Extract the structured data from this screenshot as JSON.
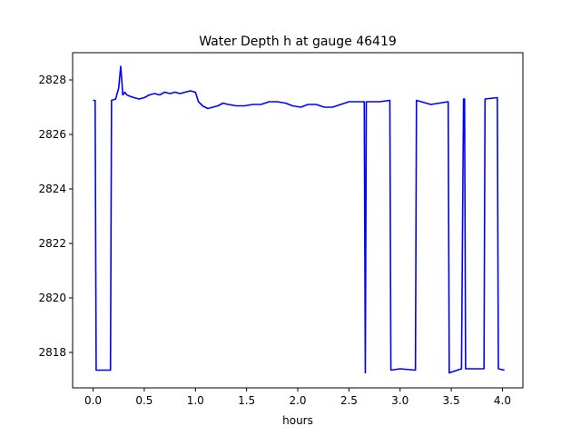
{
  "chart_data": {
    "type": "line",
    "title": "Water Depth h at gauge 46419",
    "xlabel": "hours",
    "ylabel": "",
    "xlim": [
      -0.2,
      4.2
    ],
    "ylim": [
      2816.7,
      2829.0
    ],
    "xticks": [
      0.0,
      0.5,
      1.0,
      1.5,
      2.0,
      2.5,
      3.0,
      3.5,
      4.0
    ],
    "xtick_labels": [
      "0.0",
      "0.5",
      "1.0",
      "1.5",
      "2.0",
      "2.5",
      "3.0",
      "3.5",
      "4.0"
    ],
    "yticks": [
      2818,
      2820,
      2822,
      2824,
      2826,
      2828
    ],
    "ytick_labels": [
      "2818",
      "2820",
      "2822",
      "2824",
      "2826",
      "2828"
    ],
    "grid": false,
    "series": [
      {
        "name": "",
        "color": "#0000ff",
        "x": [
          0.0,
          0.02,
          0.03,
          0.17,
          0.18,
          0.22,
          0.25,
          0.27,
          0.28,
          0.29,
          0.31,
          0.33,
          0.36,
          0.4,
          0.45,
          0.5,
          0.55,
          0.6,
          0.65,
          0.7,
          0.75,
          0.8,
          0.85,
          0.9,
          0.95,
          1.0,
          1.03,
          1.07,
          1.12,
          1.17,
          1.22,
          1.27,
          1.32,
          1.4,
          1.48,
          1.56,
          1.64,
          1.72,
          1.8,
          1.88,
          1.95,
          2.03,
          2.1,
          2.18,
          2.26,
          2.34,
          2.42,
          2.5,
          2.58,
          2.65,
          2.66,
          2.67,
          2.68,
          2.8,
          2.9,
          2.91,
          3.0,
          3.15,
          3.16,
          3.3,
          3.47,
          3.48,
          3.6,
          3.62,
          3.63,
          3.64,
          3.65,
          3.82,
          3.83,
          3.95,
          3.96,
          4.02
        ],
        "values": [
          2827.25,
          2827.25,
          2817.35,
          2817.35,
          2827.25,
          2827.3,
          2827.7,
          2828.5,
          2828.0,
          2827.45,
          2827.55,
          2827.45,
          2827.4,
          2827.35,
          2827.3,
          2827.35,
          2827.45,
          2827.5,
          2827.45,
          2827.55,
          2827.5,
          2827.55,
          2827.5,
          2827.55,
          2827.6,
          2827.55,
          2827.2,
          2827.05,
          2826.95,
          2827.0,
          2827.05,
          2827.15,
          2827.1,
          2827.05,
          2827.05,
          2827.1,
          2827.1,
          2827.2,
          2827.2,
          2827.15,
          2827.05,
          2827.0,
          2827.1,
          2827.1,
          2827.0,
          2827.0,
          2827.1,
          2827.2,
          2827.2,
          2827.2,
          2817.25,
          2827.2,
          2827.2,
          2827.2,
          2827.25,
          2817.35,
          2817.4,
          2817.35,
          2827.25,
          2827.1,
          2827.2,
          2817.25,
          2817.4,
          2827.3,
          2827.3,
          2817.4,
          2817.4,
          2817.4,
          2827.3,
          2827.35,
          2817.4,
          2817.35
        ]
      }
    ]
  }
}
